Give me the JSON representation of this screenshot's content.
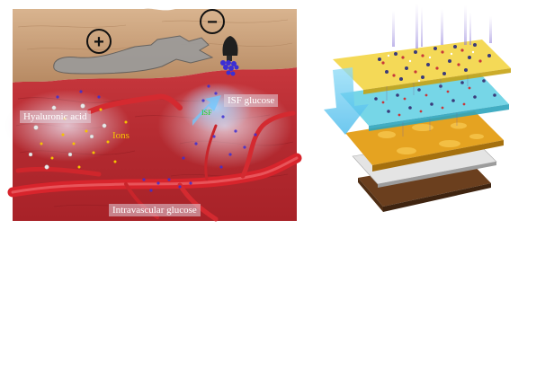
{
  "labels": {
    "hyaluronic_acid": "Hyaluronic acid",
    "ions": "Ions",
    "isf_glucose": "ISF glucose",
    "isf_small": "ISF",
    "intravascular_glucose": "Intravascular glucose"
  },
  "symbols": {
    "plus": "+",
    "minus": "−"
  },
  "colors": {
    "skin_top": "#c9a07a",
    "dermis": "#b8252c",
    "vessel": "#d8242c",
    "ions": "#f5c400",
    "glucose": "#3b2fd4",
    "electrode": "#2b2b2b",
    "layer_top": "#f2d23a",
    "layer_cyan": "#5ecfe3",
    "layer_gold": "#e5a321",
    "layer_gray": "#dcdcdc",
    "layer_brown": "#6b3f1e",
    "arrow": "#5ec8f0"
  }
}
